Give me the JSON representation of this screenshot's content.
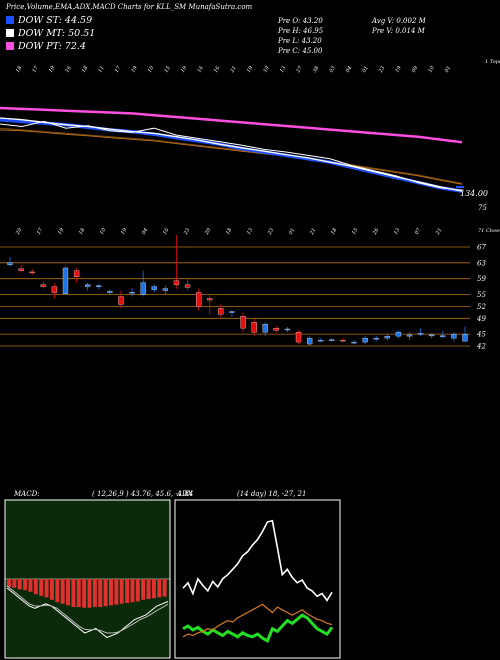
{
  "header": {
    "title": "Price,Volume,EMA,ADX,MACD Charts for KLL_SM MunafaSutra.com",
    "dow_st": "DOW ST: 44.59",
    "dow_mt": "DOW MT: 50.51",
    "dow_pt": "DOW PT: 72.4",
    "pre_o": "Pre   O: 43.20",
    "pre_h": "Pre   H: 46.95",
    "pre_l": "Pre   L: 43.20",
    "pre_c": "Pre   C: 45.00",
    "avg_v": "Avg V: 0.002  M",
    "pre_v": "Pre   V: 0.014  M",
    "ema_right_label": "1 Tope",
    "candle_right_label": "71 Close"
  },
  "colors": {
    "dow_st": "#1e50ff",
    "dow_mt": "#ffffff",
    "dow_pt": "#ff4fe0",
    "up": "#1f74e6",
    "down": "#e01010",
    "grid": "#b8700f",
    "macd_bg": "#0a2a0a",
    "macd_hist": "#e03030",
    "adx_main": "#ffffff",
    "adx_plus": "#21e021",
    "adx_minus": "#d87a1a"
  },
  "panels": {
    "macd_title": "MACD:",
    "macd_values": "( 12,26,9 ) 43.76,  45.6,  -1.84",
    "adx_title": "ADX",
    "adx_values": "(14 day) 18,  -27,  21"
  },
  "chart_data": [
    {
      "type": "line",
      "name": "ema-panel",
      "y_tick_labels": [
        "134.00",
        "75"
      ],
      "top_date_labels": [
        "18",
        "17",
        "19",
        "16",
        "18",
        "11",
        "17",
        "19",
        "10",
        "15",
        "19",
        "16",
        "16",
        "21",
        "19",
        "10",
        "13",
        "27",
        "38",
        "03",
        "04",
        "01",
        "23",
        "19",
        "09",
        "10",
        "01"
      ],
      "series": [
        {
          "name": "ema-pink",
          "values": [
            103,
            104,
            105,
            106,
            107,
            108,
            109,
            111,
            113,
            115,
            117,
            119,
            121,
            123,
            125,
            127,
            129,
            131,
            133,
            135,
            138,
            141
          ]
        },
        {
          "name": "ema-orange",
          "values": [
            62,
            63,
            65,
            67,
            69,
            71,
            73,
            75,
            78,
            81,
            84,
            87,
            90,
            93,
            96,
            100,
            104,
            108,
            112,
            116,
            121,
            126
          ]
        },
        {
          "name": "ema-orange-2",
          "values": [
            60,
            62,
            64,
            66,
            68,
            70,
            72,
            74,
            77,
            80,
            83,
            86,
            89,
            92,
            95,
            99,
            103,
            107,
            111,
            115,
            120,
            125
          ]
        },
        {
          "name": "ema-blue",
          "values": [
            50,
            52,
            54,
            56,
            59,
            62,
            64,
            67,
            71,
            75,
            79,
            84,
            88,
            92,
            96,
            100,
            106,
            112,
            118,
            124,
            130,
            134
          ]
        },
        {
          "name": "ema-white",
          "values": [
            48,
            50,
            53,
            56,
            58,
            61,
            64,
            66,
            70,
            74,
            79,
            83,
            87,
            91,
            95,
            100,
            105,
            111,
            117,
            123,
            129,
            134
          ]
        },
        {
          "name": "price-white",
          "values": [
            55,
            58,
            52,
            60,
            57,
            63,
            65,
            60,
            68,
            72,
            76,
            80,
            85,
            88,
            92,
            96,
            104,
            110,
            116,
            124,
            130,
            133
          ]
        }
      ]
    },
    {
      "type": "candlestick",
      "name": "price-panel",
      "y_tick_labels": [
        "67",
        "63",
        "59",
        "55",
        "52",
        "49",
        "45",
        "42"
      ],
      "x_tick_labels": [
        "20",
        "18",
        "17",
        "26",
        "19",
        "21",
        "18",
        "16",
        "10",
        "23",
        "19",
        "03",
        "04",
        "01",
        "16",
        "09",
        "23",
        "31",
        "20",
        "22",
        "18",
        "24",
        "13",
        "14",
        "23",
        "25",
        "01",
        "08",
        "21",
        "27",
        "18",
        "25",
        "15",
        "23",
        "26",
        "21",
        "13",
        "14",
        "07",
        "24",
        "21",
        "07"
      ],
      "candles": [
        {
          "o": 63,
          "h": 64.5,
          "l": 62,
          "c": 62.5,
          "dir": "up"
        },
        {
          "o": 61.5,
          "h": 62.5,
          "l": 60.5,
          "c": 61,
          "dir": "down"
        },
        {
          "o": 60.5,
          "h": 61.5,
          "l": 60,
          "c": 60.7,
          "dir": "down"
        },
        {
          "o": 57.5,
          "h": 58.5,
          "l": 56.5,
          "c": 57,
          "dir": "down"
        },
        {
          "o": 57,
          "h": 57.8,
          "l": 54,
          "c": 55.5,
          "dir": "down"
        },
        {
          "o": 55.2,
          "h": 62,
          "l": 55,
          "c": 61.7,
          "dir": "up"
        },
        {
          "o": 61,
          "h": 61.7,
          "l": 58,
          "c": 59.5,
          "dir": "down"
        },
        {
          "o": 57.5,
          "h": 58,
          "l": 56,
          "c": 57,
          "dir": "up"
        },
        {
          "o": 57.2,
          "h": 57.7,
          "l": 56.4,
          "c": 57.2,
          "dir": "up"
        },
        {
          "o": 55.5,
          "h": 56.3,
          "l": 55,
          "c": 55.8,
          "dir": "up"
        },
        {
          "o": 54.5,
          "h": 56,
          "l": 51.5,
          "c": 52.5,
          "dir": "down"
        },
        {
          "o": 55.5,
          "h": 56.7,
          "l": 54.5,
          "c": 55.6,
          "dir": "up"
        },
        {
          "o": 55,
          "h": 61,
          "l": 54.5,
          "c": 58,
          "dir": "up"
        },
        {
          "o": 57,
          "h": 57.5,
          "l": 55.5,
          "c": 56.2,
          "dir": "up"
        },
        {
          "o": 56,
          "h": 57.2,
          "l": 55,
          "c": 56.5,
          "dir": "up"
        },
        {
          "o": 57.5,
          "h": 70,
          "l": 56.5,
          "c": 58.5,
          "dir": "down"
        },
        {
          "o": 57.5,
          "h": 59,
          "l": 56,
          "c": 56.8,
          "dir": "down"
        },
        {
          "o": 55.5,
          "h": 56.5,
          "l": 51,
          "c": 52,
          "dir": "down"
        },
        {
          "o": 54,
          "h": 55,
          "l": 50,
          "c": 53.6,
          "dir": "down"
        },
        {
          "o": 51.5,
          "h": 52.5,
          "l": 49,
          "c": 50,
          "dir": "down"
        },
        {
          "o": 50.5,
          "h": 51,
          "l": 49.5,
          "c": 50.7,
          "dir": "up"
        },
        {
          "o": 49.5,
          "h": 50.5,
          "l": 45.5,
          "c": 46.5,
          "dir": "down"
        },
        {
          "o": 48,
          "h": 49,
          "l": 44.5,
          "c": 45.5,
          "dir": "down"
        },
        {
          "o": 45.5,
          "h": 48,
          "l": 44.5,
          "c": 47.5,
          "dir": "up"
        },
        {
          "o": 46.5,
          "h": 47,
          "l": 45.5,
          "c": 46,
          "dir": "down"
        },
        {
          "o": 46.3,
          "h": 46.8,
          "l": 45.5,
          "c": 46.3,
          "dir": "up"
        },
        {
          "o": 45.5,
          "h": 46,
          "l": 42.5,
          "c": 43,
          "dir": "down"
        },
        {
          "o": 42.5,
          "h": 44.5,
          "l": 42,
          "c": 44,
          "dir": "up"
        },
        {
          "o": 43.5,
          "h": 44,
          "l": 43,
          "c": 43.5,
          "dir": "up"
        },
        {
          "o": 43.6,
          "h": 44,
          "l": 43,
          "c": 43.6,
          "dir": "up"
        },
        {
          "o": 43.5,
          "h": 44,
          "l": 43,
          "c": 43.4,
          "dir": "down"
        },
        {
          "o": 43,
          "h": 43.5,
          "l": 42.5,
          "c": 43,
          "dir": "up"
        },
        {
          "o": 43,
          "h": 44.5,
          "l": 42.5,
          "c": 44,
          "dir": "up"
        },
        {
          "o": 44,
          "h": 44.5,
          "l": 43.2,
          "c": 43.8,
          "dir": "up"
        },
        {
          "o": 44,
          "h": 45,
          "l": 43.5,
          "c": 44.5,
          "dir": "up"
        },
        {
          "o": 44.5,
          "h": 46,
          "l": 44,
          "c": 45.5,
          "dir": "up"
        },
        {
          "o": 44.5,
          "h": 45.5,
          "l": 43.5,
          "c": 44.8,
          "dir": "up"
        },
        {
          "o": 45.2,
          "h": 46.5,
          "l": 44.5,
          "c": 45.2,
          "dir": "up"
        },
        {
          "o": 44.8,
          "h": 45.2,
          "l": 44,
          "c": 44.8,
          "dir": "up"
        },
        {
          "o": 44.6,
          "h": 45.8,
          "l": 44,
          "c": 44.6,
          "dir": "up"
        },
        {
          "o": 44,
          "h": 45.5,
          "l": 43.2,
          "c": 45,
          "dir": "up"
        },
        {
          "o": 43.2,
          "h": 46.95,
          "l": 43.2,
          "c": 45,
          "dir": "up"
        }
      ]
    },
    {
      "type": "area",
      "name": "macd-panel",
      "series": [
        {
          "name": "macd-hist",
          "values": [
            -1,
            -1.1,
            -1.3,
            -1.4,
            -1.6,
            -1.9,
            -2.1,
            -2.3,
            -2.6,
            -2.9,
            -3.1,
            -3.3,
            -3.5,
            -3.5,
            -3.6,
            -3.6,
            -3.5,
            -3.5,
            -3.4,
            -3.3,
            -3.2,
            -3.1,
            -3.0,
            -2.9,
            -2.8,
            -2.6,
            -2.5,
            -2.4,
            -2.3,
            -2.2
          ]
        },
        {
          "name": "macd-line",
          "values": [
            -2,
            -3,
            -4,
            -5,
            -6,
            -6.5,
            -6,
            -5.5,
            -6,
            -7,
            -8,
            -9,
            -10,
            -11,
            -12,
            -11.5,
            -11,
            -12,
            -13,
            -12.5,
            -12,
            -11,
            -10,
            -9,
            -8.5,
            -8,
            -7,
            -6,
            -5.5,
            -5
          ]
        },
        {
          "name": "macd-signal",
          "values": [
            -1.5,
            -2.5,
            -3.5,
            -4.5,
            -5.5,
            -6,
            -6,
            -5.8,
            -6,
            -6.5,
            -7.5,
            -8.5,
            -9.5,
            -10.5,
            -11.2,
            -11.3,
            -11.2,
            -11.5,
            -12,
            -12,
            -11.8,
            -11.2,
            -10.5,
            -9.8,
            -9,
            -8.5,
            -7.8,
            -7,
            -6.3,
            -5.6
          ]
        }
      ]
    },
    {
      "type": "line",
      "name": "adx-panel",
      "series": [
        {
          "name": "adx",
          "values": [
            48,
            52,
            44,
            55,
            50,
            46,
            53,
            49,
            55,
            58,
            62,
            66,
            72,
            75,
            80,
            84,
            90,
            97,
            98,
            78,
            58,
            62,
            56,
            52,
            54,
            48,
            46,
            42,
            44,
            39,
            45
          ]
        },
        {
          "name": "plus-di",
          "values": [
            18,
            20,
            17,
            19,
            16,
            14,
            17,
            15,
            13,
            16,
            14,
            12,
            15,
            13,
            12,
            14,
            11,
            9,
            18,
            16,
            20,
            24,
            22,
            25,
            28,
            26,
            22,
            18,
            16,
            14,
            19
          ]
        },
        {
          "name": "minus-di",
          "values": [
            12,
            14,
            13,
            15,
            16,
            18,
            17,
            20,
            22,
            24,
            23,
            26,
            28,
            30,
            32,
            34,
            36,
            33,
            30,
            34,
            32,
            30,
            28,
            30,
            32,
            29,
            27,
            25,
            24,
            22,
            21
          ]
        }
      ]
    }
  ]
}
